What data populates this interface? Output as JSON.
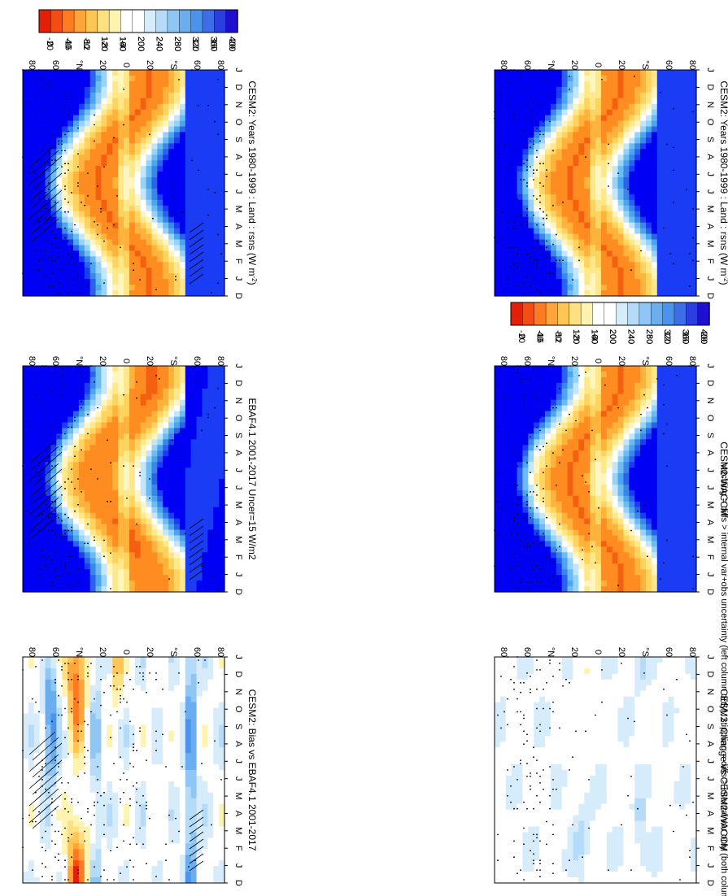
{
  "footer_note": "hatching = diffs > internal var+obs uncertainty (left column only); stippling = diffs > internal var only (both columns)",
  "colors": {
    "abs_scale": [
      "#0000f5",
      "#1a3cf5",
      "#2a62ea",
      "#3b86e8",
      "#4ba6ee",
      "#6bbcf2",
      "#97d3f7",
      "#c3e6fb",
      "#ffffff",
      "#fff5c0",
      "#ffe88a",
      "#ffd45e",
      "#ffb33c",
      "#ff8c20",
      "#f56010",
      "#e83208",
      "#d80000"
    ],
    "diff_scale": [
      "#1f0fd0",
      "#2b3ee0",
      "#3f6de8",
      "#4c93ec",
      "#6aaef0",
      "#8fc6f4",
      "#b5dbf8",
      "#d7ecfb",
      "#ffffff",
      "#ffffff",
      "#fff3b0",
      "#ffe080",
      "#ffc655",
      "#ffa53b",
      "#ff7b22",
      "#f54c12",
      "#e61e06"
    ]
  },
  "chart_data": [
    {
      "type": "heatmap",
      "title": "CESM2: Years 1980-1999 : Land : rsns (W m",
      "title_sup": "-2",
      "title_tail": ")",
      "x_ticklabels": [
        "D",
        "J",
        "F",
        "M",
        "A",
        "M",
        "J",
        "J",
        "A",
        "S",
        "O",
        "N",
        "D",
        "J"
      ],
      "y_ticklabels": [
        "80",
        "60",
        "°N",
        "20",
        "0",
        "20",
        "°S",
        "60",
        "80"
      ],
      "colorbar_labels": [
        "400",
        "360",
        "320",
        "280",
        "240",
        "200",
        "160",
        "120",
        "80",
        "40",
        "0"
      ],
      "colorbar_range": [
        0,
        400
      ],
      "field": "abs",
      "hatched": true
    },
    {
      "type": "heatmap",
      "title": "EBAF4.1 2001-2017 Uncer=15 W/m2",
      "x_ticklabels": [
        "D",
        "J",
        "F",
        "M",
        "A",
        "M",
        "J",
        "J",
        "A",
        "S",
        "O",
        "N",
        "D",
        "J"
      ],
      "y_ticklabels": [
        "80",
        "60",
        "°N",
        "20",
        "0",
        "20",
        "°S",
        "60",
        "80"
      ],
      "colorbar_labels": [
        "400",
        "360",
        "320",
        "280",
        "240",
        "200",
        "160",
        "120",
        "80",
        "40",
        "0"
      ],
      "colorbar_range": [
        0,
        400
      ],
      "field": "abs2",
      "hatched": true
    },
    {
      "type": "heatmap",
      "title": "CESM2: Bias vs EBAF4.1 2001-2017",
      "x_ticklabels": [
        "D",
        "J",
        "F",
        "M",
        "A",
        "M",
        "J",
        "J",
        "A",
        "S",
        "O",
        "N",
        "D",
        "J"
      ],
      "y_ticklabels": [
        "80",
        "60",
        "°N",
        "20",
        "0",
        "20",
        "°S",
        "60",
        "80"
      ],
      "colorbar_labels": [
        "20",
        "16",
        "12",
        "8",
        "4",
        "0",
        "-4",
        "-8",
        "-12",
        "-16",
        "-20"
      ],
      "colorbar_range": [
        -20,
        20
      ],
      "field": "bias",
      "hatched": true
    },
    {
      "type": "heatmap",
      "title": "CESM2: Years 1980-1999 : Land : rsns (W m",
      "title_sup": "-2",
      "title_tail": ")",
      "x_ticklabels": [
        "D",
        "J",
        "F",
        "M",
        "A",
        "M",
        "J",
        "J",
        "A",
        "S",
        "O",
        "N",
        "D",
        "J"
      ],
      "y_ticklabels": [
        "80",
        "60",
        "°N",
        "20",
        "0",
        "20",
        "°S",
        "60",
        "80"
      ],
      "colorbar_labels": [
        "400",
        "360",
        "320",
        "280",
        "240",
        "200",
        "160",
        "120",
        "80",
        "40",
        "0"
      ],
      "colorbar_range": [
        0,
        400
      ],
      "field": "abs",
      "hatched": false
    },
    {
      "type": "heatmap",
      "title": "CESM2-WACCM",
      "x_ticklabels": [
        "D",
        "J",
        "F",
        "M",
        "A",
        "M",
        "J",
        "J",
        "A",
        "S",
        "O",
        "N",
        "D",
        "J"
      ],
      "y_ticklabels": [
        "80",
        "60",
        "°N",
        "20",
        "0",
        "20",
        "°S",
        "60",
        "80"
      ],
      "colorbar_labels": [
        "400",
        "360",
        "320",
        "280",
        "240",
        "200",
        "160",
        "120",
        "80",
        "40",
        "0"
      ],
      "colorbar_range": [
        0,
        400
      ],
      "field": "abs",
      "hatched": false
    },
    {
      "type": "heatmap",
      "title": "CESM2: Change vs CESM2-WACCM",
      "x_ticklabels": [
        "D",
        "J",
        "F",
        "M",
        "A",
        "M",
        "J",
        "J",
        "A",
        "S",
        "O",
        "N",
        "D",
        "J"
      ],
      "y_ticklabels": [
        "80",
        "60",
        "°N",
        "20",
        "0",
        "20",
        "°S",
        "60",
        "80"
      ],
      "colorbar_labels": [
        "20",
        "16",
        "12",
        "8",
        "4",
        "0",
        "-4",
        "-8",
        "-12",
        "-16",
        "-20"
      ],
      "colorbar_range": [
        -20,
        20
      ],
      "field": "change",
      "hatched": false
    }
  ]
}
